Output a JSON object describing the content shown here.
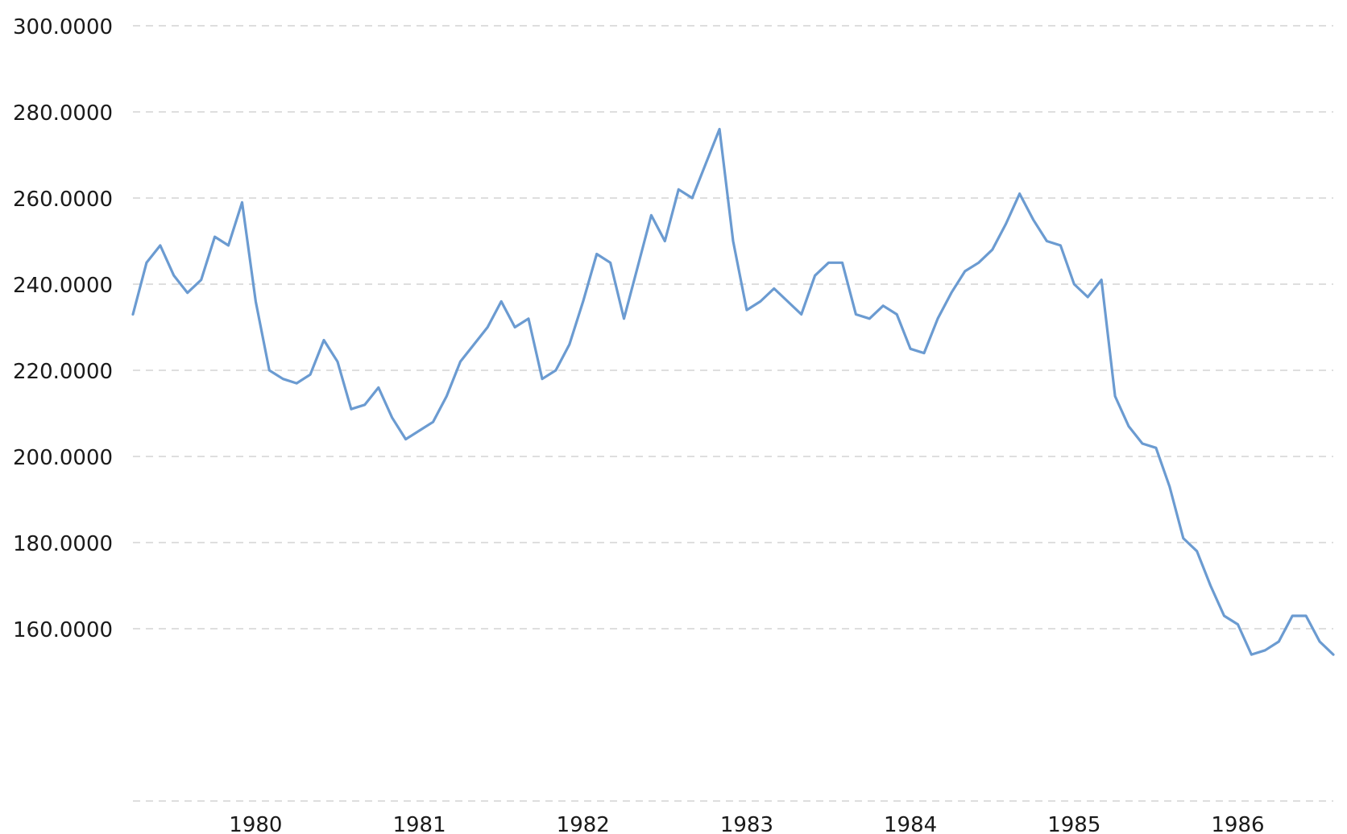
{
  "chart_data": {
    "type": "line",
    "title": "",
    "xlabel": "",
    "ylabel": "",
    "x_range": [
      "1979-04",
      "1986-08"
    ],
    "ylim": [
      120,
      300
    ],
    "y_tick_labels": [
      "160.0000",
      "180.0000",
      "200.0000",
      "220.0000",
      "240.0000",
      "260.0000",
      "280.0000",
      "300.0000"
    ],
    "y_tick_values": [
      160,
      180,
      200,
      220,
      240,
      260,
      280,
      300
    ],
    "x_tick_labels": [
      "1980",
      "1981",
      "1982",
      "1983",
      "1984",
      "1985",
      "1986"
    ],
    "x_tick_values": [
      "1980-01",
      "1981-01",
      "1982-01",
      "1983-01",
      "1984-01",
      "1985-01",
      "1986-01"
    ],
    "grid": true,
    "grid_style": "dashed",
    "line_color": "#6b9bd1",
    "series": [
      {
        "x": [
          "1979-04",
          "1979-05",
          "1979-06",
          "1979-07",
          "1979-08",
          "1979-09",
          "1979-10",
          "1979-11",
          "1979-12",
          "1980-01",
          "1980-02",
          "1980-03",
          "1980-04",
          "1980-05",
          "1980-06",
          "1980-07",
          "1980-08",
          "1980-09",
          "1980-10",
          "1980-11",
          "1980-12",
          "1981-01",
          "1981-02",
          "1981-03",
          "1981-04",
          "1981-05",
          "1981-06",
          "1981-07",
          "1981-08",
          "1981-09",
          "1981-10",
          "1981-11",
          "1981-12",
          "1982-01",
          "1982-02",
          "1982-03",
          "1982-04",
          "1982-05",
          "1982-06",
          "1982-07",
          "1982-08",
          "1982-09",
          "1982-10",
          "1982-11",
          "1982-12",
          "1983-01",
          "1983-02",
          "1983-03",
          "1983-04",
          "1983-05",
          "1983-06",
          "1983-07",
          "1983-08",
          "1983-09",
          "1983-10",
          "1983-11",
          "1983-12",
          "1984-01",
          "1984-02",
          "1984-03",
          "1984-04",
          "1984-05",
          "1984-06",
          "1984-07",
          "1984-08",
          "1984-09",
          "1984-10",
          "1984-11",
          "1984-12",
          "1985-01",
          "1985-02",
          "1985-03",
          "1985-04",
          "1985-05",
          "1985-06",
          "1985-07",
          "1985-08",
          "1985-09",
          "1985-10",
          "1985-11",
          "1985-12",
          "1986-01",
          "1986-02",
          "1986-03",
          "1986-04",
          "1986-05",
          "1986-06",
          "1986-07",
          "1986-08"
        ],
        "values": [
          233,
          245,
          249,
          242,
          238,
          241,
          251,
          249,
          259,
          236,
          220,
          218,
          217,
          219,
          227,
          222,
          211,
          212,
          216,
          209,
          204,
          206,
          208,
          214,
          222,
          226,
          230,
          236,
          230,
          232,
          218,
          220,
          226,
          236,
          247,
          245,
          232,
          244,
          256,
          250,
          262,
          260,
          268,
          276,
          250,
          234,
          236,
          239,
          236,
          233,
          242,
          245,
          245,
          233,
          232,
          235,
          233,
          225,
          224,
          232,
          238,
          243,
          245,
          248,
          254,
          261,
          255,
          250,
          249,
          240,
          237,
          241,
          214,
          207,
          203,
          202,
          193,
          181,
          178,
          170,
          163,
          161,
          154,
          155,
          157,
          163,
          163,
          157,
          154
        ]
      }
    ]
  }
}
